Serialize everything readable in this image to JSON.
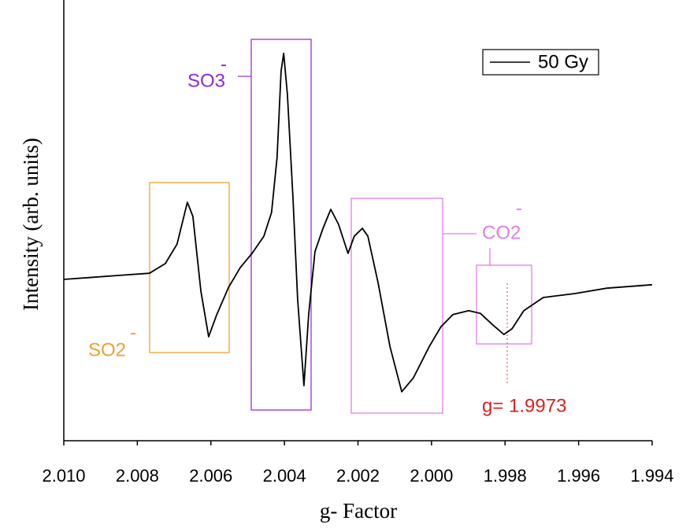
{
  "chart_data": {
    "type": "line",
    "xlabel": "g- Factor",
    "ylabel": "Intensity (arb. units)",
    "xlim": [
      2.01,
      1.994
    ],
    "xticks": [
      {
        "value": 2.01,
        "label": "2.010"
      },
      2.008,
      2.006,
      2.004,
      2.002,
      {
        "value": 2.0,
        "label": "2.000"
      },
      1.998,
      1.996,
      1.994
    ],
    "ylim": [
      0,
      100
    ],
    "legend": "top-right",
    "series": [
      {
        "name": "50 Gy",
        "color": "#000000",
        "x": [
          2.01,
          2.00916,
          2.00852,
          2.00767,
          2.00724,
          2.00692,
          2.00664,
          2.00649,
          2.00627,
          2.00606,
          2.00584,
          2.00552,
          2.0052,
          2.00488,
          2.00456,
          2.00435,
          2.0042,
          2.00409,
          2.00402,
          2.00392,
          2.00377,
          2.00364,
          2.00347,
          2.00334,
          2.00317,
          2.00295,
          2.00274,
          2.00253,
          2.00227,
          2.0021,
          2.00188,
          2.00173,
          2.00145,
          2.00113,
          2.00081,
          2.00049,
          2.00006,
          1.99974,
          1.99942,
          1.99899,
          1.99867,
          1.99835,
          1.99803,
          1.99781,
          1.99749,
          1.99696,
          1.9961,
          1.99524,
          1.994
        ],
        "values": [
          36.6,
          37.1,
          37.5,
          38.0,
          40.2,
          44.6,
          54.1,
          50.9,
          33.9,
          23.6,
          28.6,
          34.8,
          39.3,
          42.5,
          46.4,
          51.8,
          64.3,
          83.9,
          87.9,
          78.6,
          55.4,
          32.1,
          12.5,
          28.6,
          42.9,
          48.2,
          52.5,
          49.1,
          42.5,
          46.4,
          48.2,
          46.4,
          35.7,
          21.4,
          11.1,
          14.3,
          21.4,
          25.9,
          28.6,
          29.5,
          28.9,
          26.4,
          24.1,
          25.4,
          29.5,
          32.5,
          33.4,
          34.6,
          35.4
        ]
      }
    ],
    "annotations": [
      {
        "text": "SO2",
        "superscript": "-",
        "color": "#f0a030"
      },
      {
        "text": "SO3",
        "superscript": "-",
        "color": "#8a2be2"
      },
      {
        "text": "CO2",
        "superscript": "-",
        "color": "#e27de8"
      },
      {
        "text": "g= 1.9973",
        "color": "#e02020"
      }
    ]
  }
}
